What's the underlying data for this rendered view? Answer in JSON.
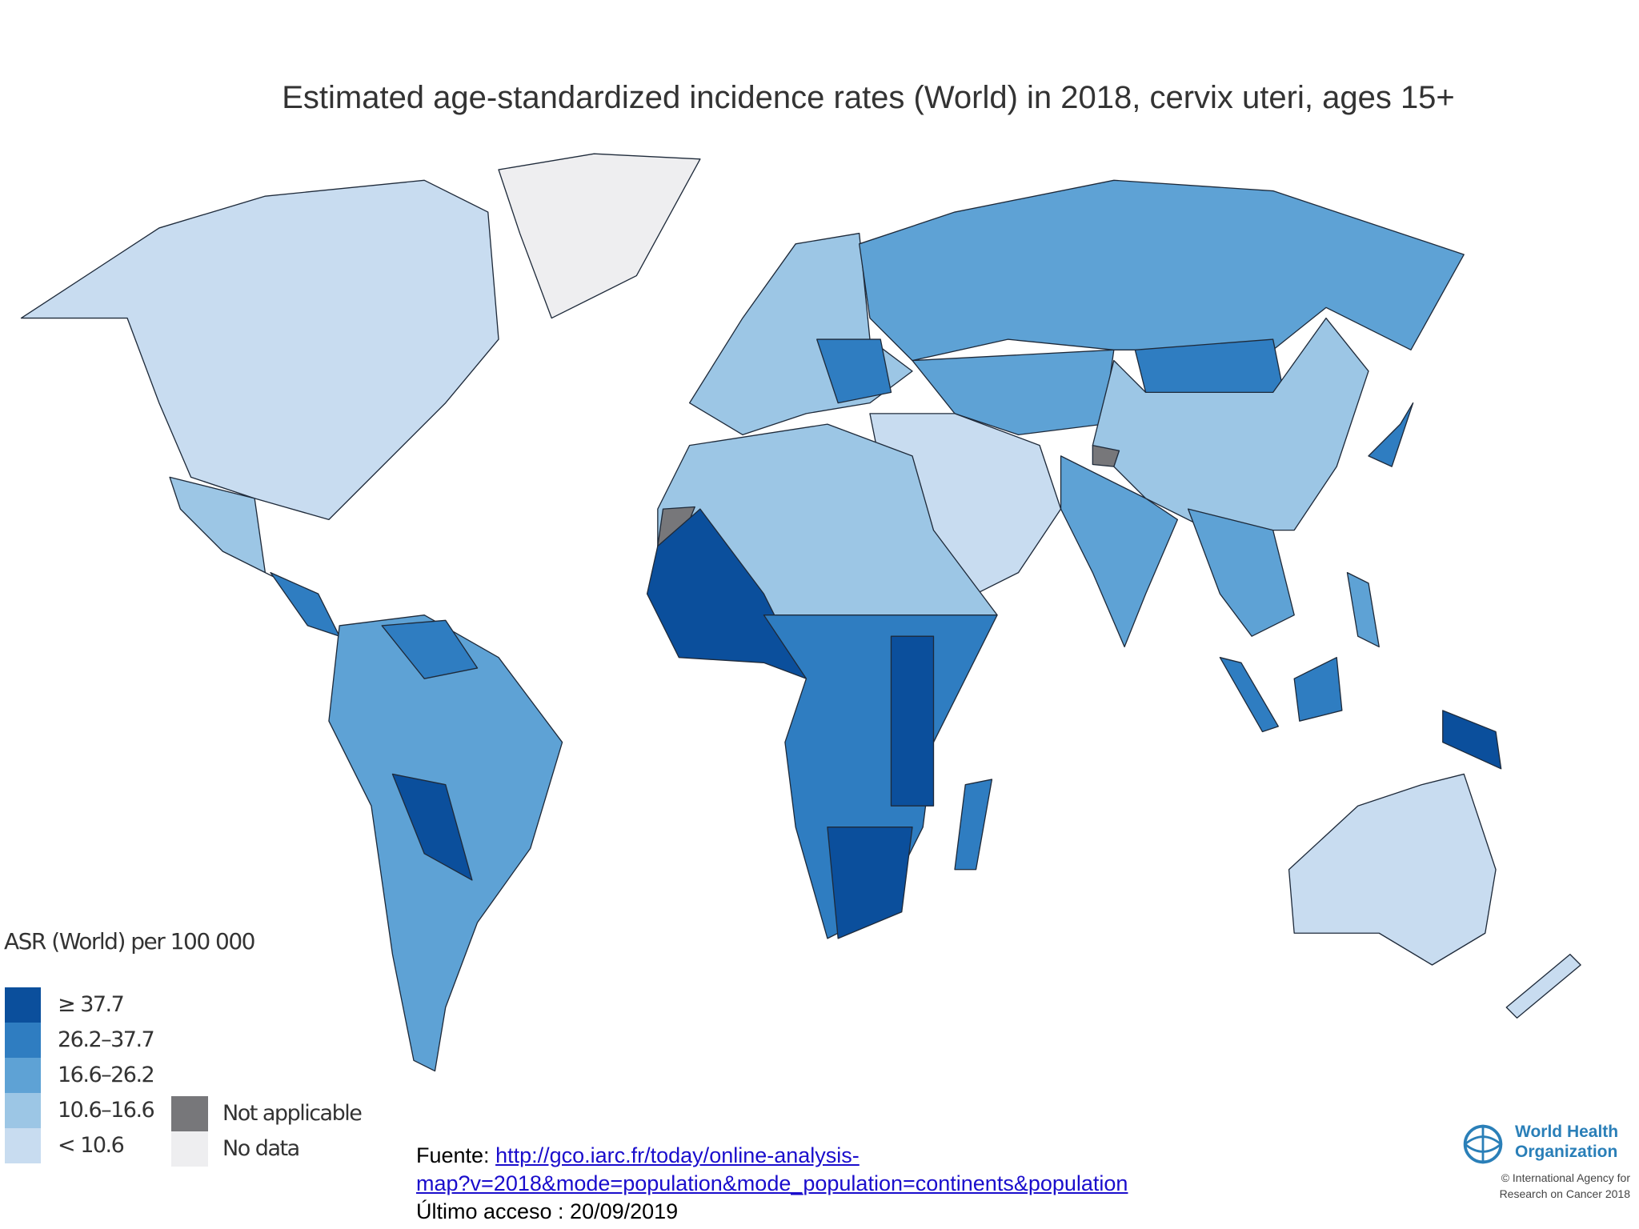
{
  "title": "Estimated age-standardized incidence rates (World) in 2018, cervix uteri, ages 15+",
  "legend": {
    "title": "ASR (World) per 100 000",
    "classes": [
      {
        "label": "≥ 37.7",
        "color": "#0b4f9c"
      },
      {
        "label": "26.2–37.7",
        "color": "#2f7dc1"
      },
      {
        "label": "16.6–26.2",
        "color": "#5ea2d5"
      },
      {
        "label": "10.6–16.6",
        "color": "#9cc6e5"
      },
      {
        "label": "< 10.6",
        "color": "#c8dcf0"
      }
    ],
    "special": [
      {
        "label": "Not applicable",
        "color": "#77777a"
      },
      {
        "label": "No data",
        "color": "#eeeef0"
      }
    ]
  },
  "footer": {
    "source_label": "Fuente: ",
    "source_link_line1": "http://gco.iarc.fr/today/online-analysis-",
    "source_link_line2": "map?v=2018&mode=population&mode_population=continents&population",
    "last_access": "Último acceso : 20/09/2019"
  },
  "logo": {
    "name_line1": "World Health",
    "name_line2": "Organization",
    "credit_line1": "© International Agency for",
    "credit_line2": "Research on Cancer 2018"
  }
}
